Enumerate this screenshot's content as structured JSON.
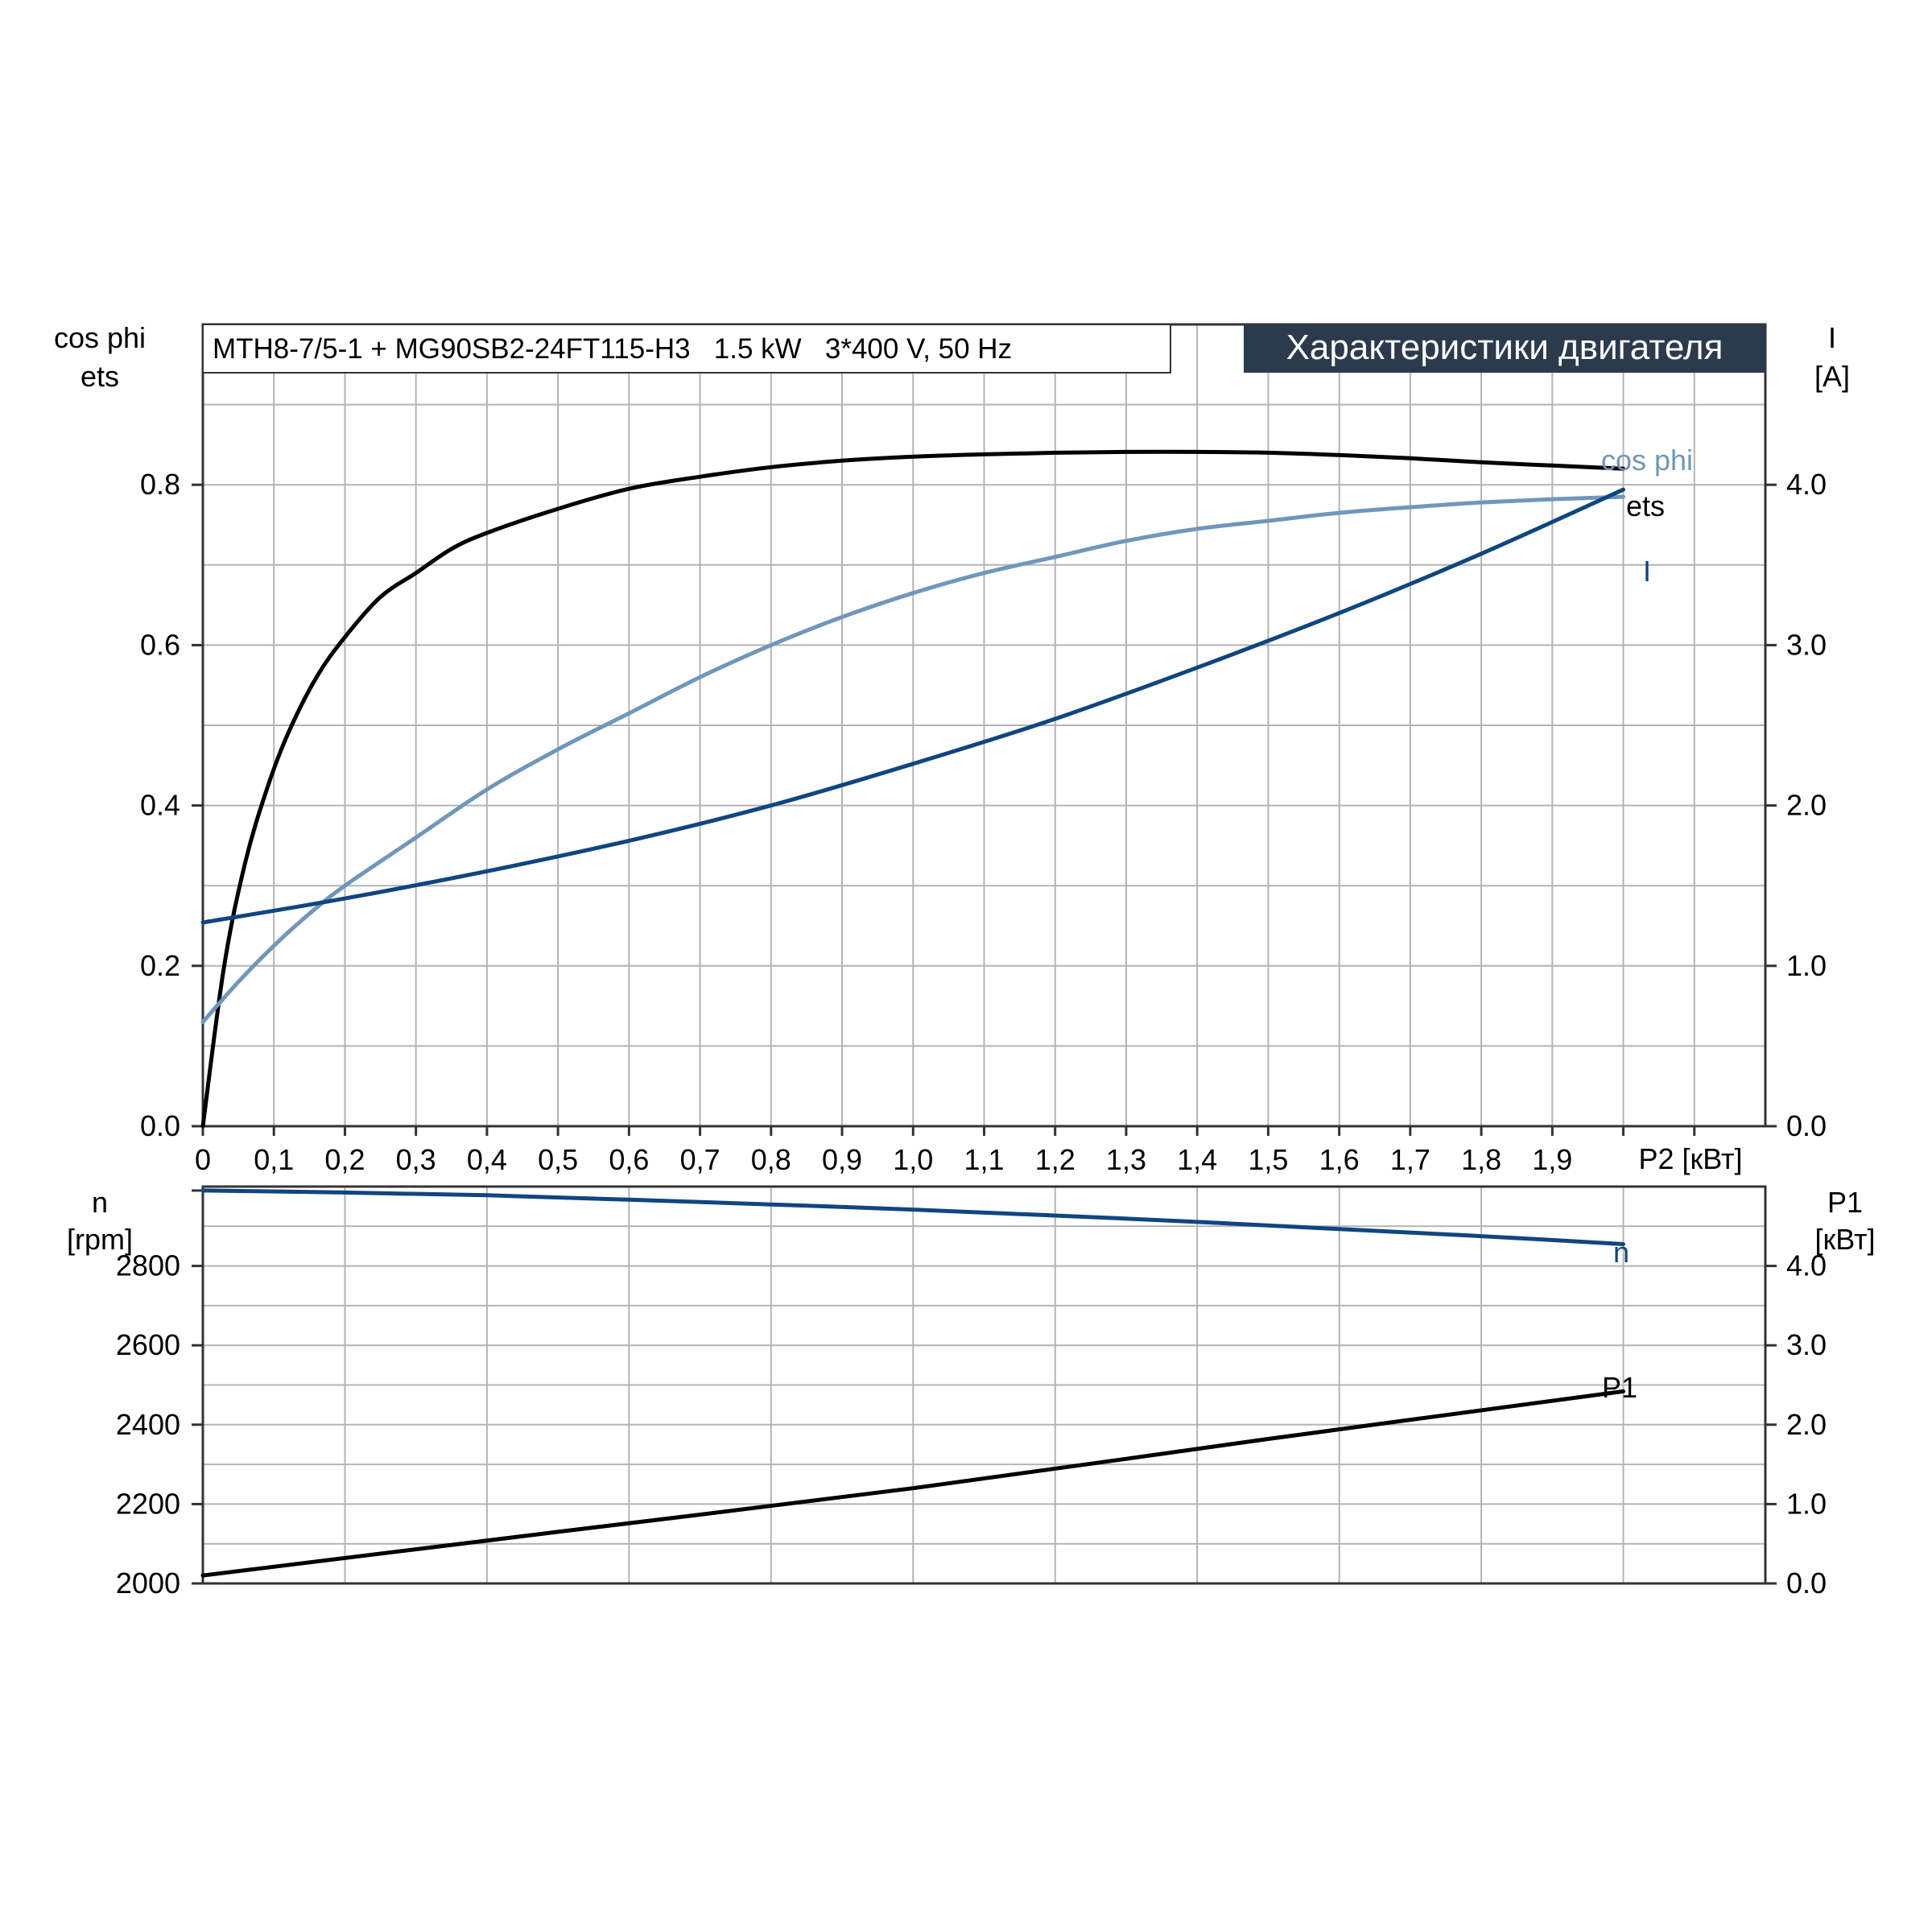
{
  "colors": {
    "grid": "#b4b4b4",
    "frame": "#333333",
    "black": "#000000",
    "dark_blue": "#0f4680",
    "light_blue": "#6f97bd",
    "header_bg": "#2b3a4d",
    "header_text": "#ffffff"
  },
  "header": {
    "model": "MTH8-7/5-1 + MG90SB2-24FT115-H3   1.5 kW   3*400 V, 50 Hz",
    "title": "Характеристики двигателя"
  },
  "chart_data": [
    {
      "type": "line",
      "name": "top",
      "xlabel": "P2 [кВт]",
      "x_ticks": [
        "0",
        "0,1",
        "0,2",
        "0,3",
        "0,4",
        "0,5",
        "0,6",
        "0,7",
        "0,8",
        "0,9",
        "1,0",
        "1,1",
        "1,2",
        "1,3",
        "1,4",
        "1,5",
        "1,6",
        "1,7",
        "1,8",
        "1,9"
      ],
      "xlim": [
        0,
        2.2
      ],
      "y_left": {
        "label_lines": [
          "cos phi",
          "ets"
        ],
        "ylim": [
          0,
          1.0
        ],
        "ticks": [
          "0.0",
          "0.2",
          "0.4",
          "0.6",
          "0.8"
        ]
      },
      "y_right": {
        "label_lines": [
          "I",
          "[A]"
        ],
        "ylim": [
          0,
          5.0
        ],
        "ticks": [
          "0.0",
          "1.0",
          "2.0",
          "3.0",
          "4.0"
        ]
      },
      "grid": true,
      "series": [
        {
          "name": "ets",
          "axis": "left",
          "color_key": "black",
          "x": [
            0,
            0.03,
            0.06,
            0.09,
            0.12,
            0.16,
            0.2,
            0.25,
            0.3,
            0.35,
            0.4,
            0.5,
            0.6,
            0.7,
            0.8,
            0.9,
            1.0,
            1.1,
            1.2,
            1.3,
            1.4,
            1.5,
            1.6,
            1.7,
            1.8,
            1.9,
            2.0
          ],
          "y": [
            0,
            0.2,
            0.33,
            0.42,
            0.49,
            0.56,
            0.61,
            0.66,
            0.69,
            0.72,
            0.74,
            0.77,
            0.795,
            0.81,
            0.822,
            0.83,
            0.835,
            0.838,
            0.84,
            0.841,
            0.841,
            0.84,
            0.837,
            0.833,
            0.828,
            0.824,
            0.82
          ]
        },
        {
          "name": "cos phi",
          "axis": "left",
          "color_key": "light_blue",
          "x": [
            0,
            0.05,
            0.1,
            0.15,
            0.2,
            0.3,
            0.4,
            0.5,
            0.6,
            0.7,
            0.8,
            0.9,
            1.0,
            1.1,
            1.2,
            1.3,
            1.4,
            1.5,
            1.6,
            1.7,
            1.8,
            1.9,
            2.0
          ],
          "y": [
            0.13,
            0.18,
            0.225,
            0.265,
            0.3,
            0.36,
            0.42,
            0.47,
            0.515,
            0.56,
            0.6,
            0.635,
            0.665,
            0.69,
            0.71,
            0.73,
            0.745,
            0.755,
            0.765,
            0.772,
            0.778,
            0.782,
            0.785
          ]
        },
        {
          "name": "I",
          "axis": "right",
          "color_key": "dark_blue",
          "x": [
            0,
            0.2,
            0.4,
            0.6,
            0.8,
            1.0,
            1.2,
            1.4,
            1.6,
            1.8,
            2.0
          ],
          "y": [
            1.27,
            1.42,
            1.59,
            1.78,
            2.0,
            2.26,
            2.54,
            2.86,
            3.2,
            3.57,
            3.97
          ]
        }
      ]
    },
    {
      "type": "line",
      "name": "bottom",
      "xlim": [
        0,
        2.2
      ],
      "y_left": {
        "label_lines": [
          "n",
          "[rpm]"
        ],
        "ylim": [
          2000,
          3000
        ],
        "ticks": [
          "2000",
          "2200",
          "2400",
          "2600",
          "2800"
        ]
      },
      "y_right": {
        "label_lines": [
          "P1",
          "[кВт]"
        ],
        "ylim": [
          0,
          5.0
        ],
        "ticks": [
          "0.0",
          "1.0",
          "2.0",
          "3.0",
          "4.0"
        ]
      },
      "grid": true,
      "series": [
        {
          "name": "n",
          "axis": "left",
          "color_key": "dark_blue",
          "x": [
            0,
            0.2,
            0.4,
            0.6,
            0.8,
            1.0,
            1.2,
            1.4,
            1.6,
            1.8,
            2.0
          ],
          "y": [
            2990,
            2985,
            2978,
            2967,
            2955,
            2942,
            2927,
            2911,
            2893,
            2875,
            2855
          ]
        },
        {
          "name": "P1",
          "axis": "right",
          "color_key": "black",
          "x": [
            0,
            0.5,
            1.0,
            1.5,
            2.0
          ],
          "y": [
            0.1,
            0.65,
            1.2,
            1.82,
            2.42
          ]
        }
      ]
    }
  ]
}
